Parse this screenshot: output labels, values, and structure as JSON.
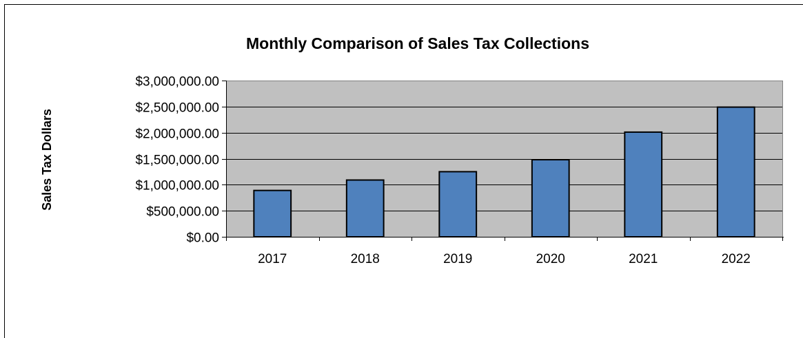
{
  "chart_data": {
    "type": "bar",
    "title": "Monthly Comparison of Sales Tax Collections",
    "xlabel": "",
    "ylabel": "Sales Tax Dollars",
    "categories": [
      "2017",
      "2018",
      "2019",
      "2020",
      "2021",
      "2022"
    ],
    "values": [
      890000,
      1090000,
      1250000,
      1480000,
      2010000,
      2490000
    ],
    "ylim": [
      0,
      3000000
    ],
    "y_ticks": [
      {
        "value": 0,
        "label": "$0.00"
      },
      {
        "value": 500000,
        "label": "$500,000.00"
      },
      {
        "value": 1000000,
        "label": "$1,000,000.00"
      },
      {
        "value": 1500000,
        "label": "$1,500,000.00"
      },
      {
        "value": 2000000,
        "label": "$2,000,000.00"
      },
      {
        "value": 2500000,
        "label": "$2,500,000.00"
      },
      {
        "value": 3000000,
        "label": "$3,000,000.00"
      }
    ],
    "grid": true,
    "legend": "none",
    "colors": {
      "bar_fill": "#4f81bd",
      "bar_stroke": "#000000",
      "plot_background": "#c0c0c0",
      "gridline": "#000000"
    }
  }
}
